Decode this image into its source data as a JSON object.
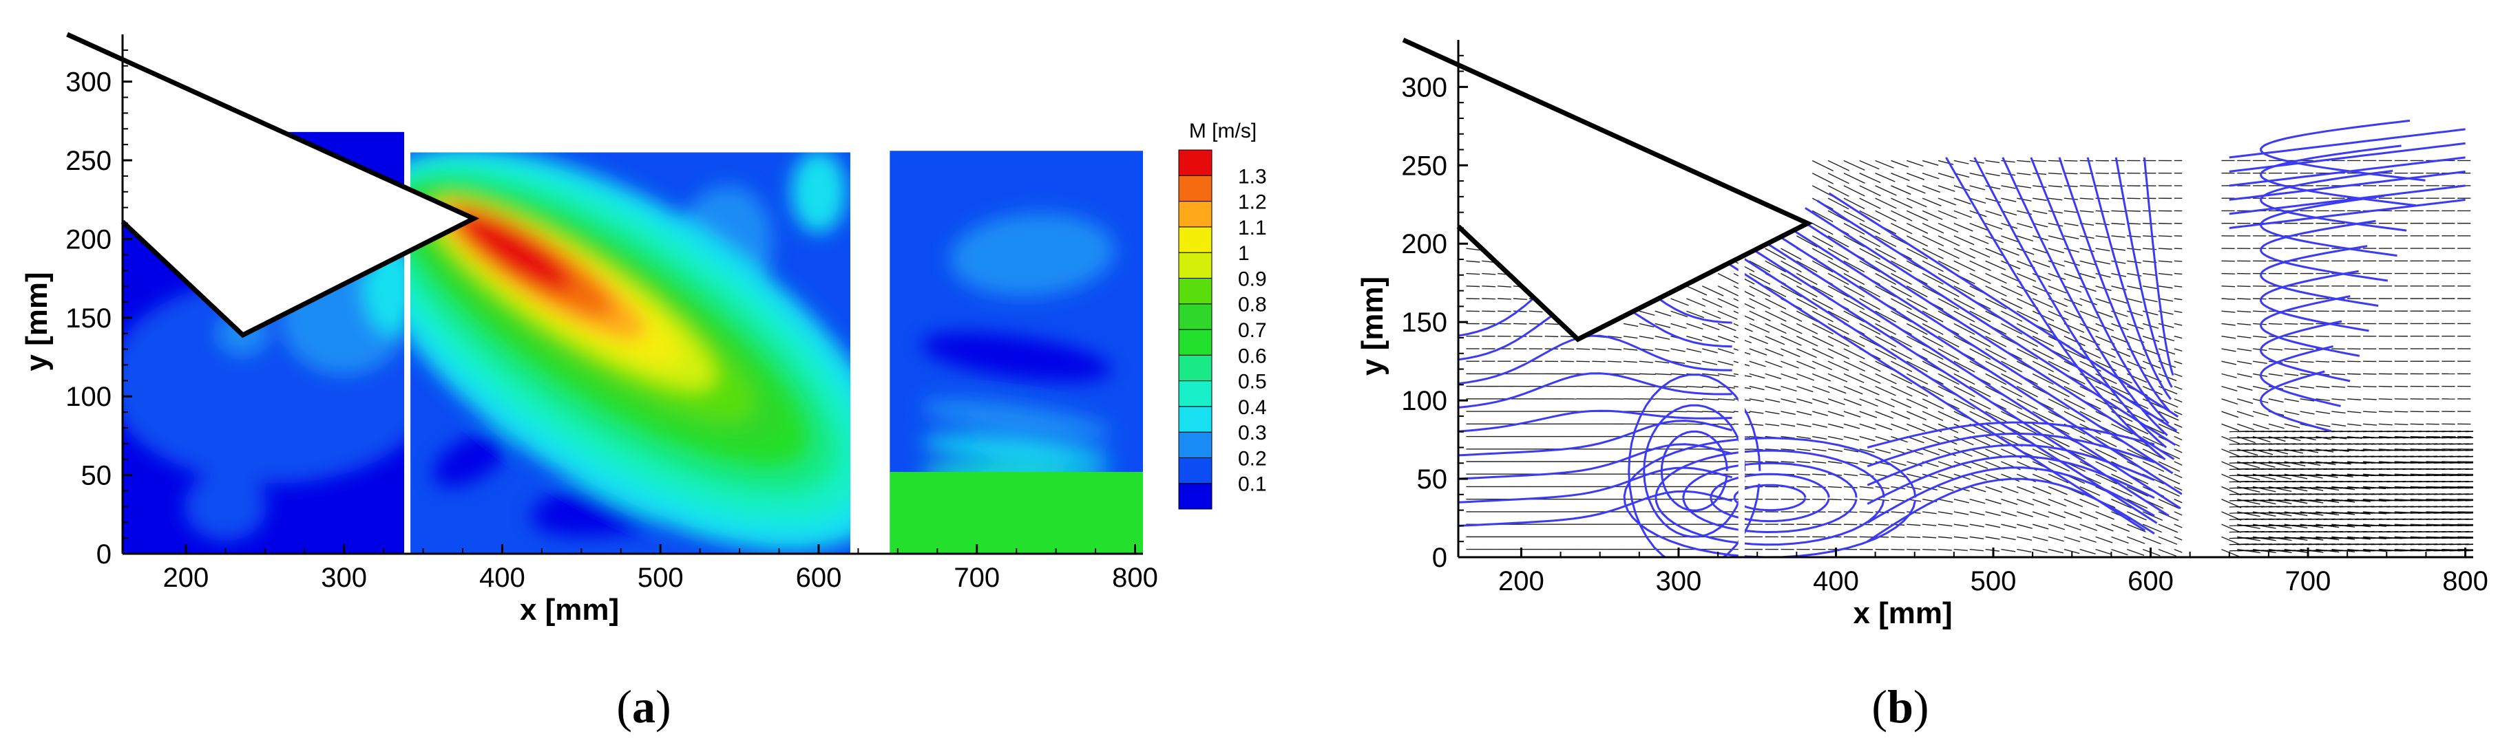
{
  "chart_data": [
    {
      "type": "heatmap",
      "panel_label": "(a)",
      "panel_label_letter": "a",
      "description_variable": "M",
      "xlabel": "x [mm]",
      "ylabel": "y [mm]",
      "xlim": [
        160,
        805
      ],
      "ylim": [
        0,
        330
      ],
      "x_ticks": [
        200,
        300,
        400,
        500,
        600,
        700,
        800
      ],
      "y_ticks": [
        0,
        50,
        100,
        150,
        200,
        250,
        300
      ],
      "colorbar": {
        "title": "M [m/s]",
        "levels": [
          0.1,
          0.2,
          0.3,
          0.4,
          0.5,
          0.6,
          0.7,
          0.8,
          0.9,
          1,
          1.1,
          1.2,
          1.3
        ],
        "colors": [
          "#0000e6",
          "#0b4df2",
          "#1a8cf5",
          "#19e0f0",
          "#17f0c8",
          "#19ea87",
          "#22e02c",
          "#2fd72b",
          "#59de0c",
          "#d4f00a",
          "#f5ee07",
          "#ffa81a",
          "#f46b10",
          "#e60a0a"
        ]
      },
      "windows": [
        {
          "x": [
            160,
            338
          ],
          "y": [
            0,
            268
          ]
        },
        {
          "x": [
            342,
            620
          ],
          "y": [
            0,
            255
          ]
        },
        {
          "x": [
            645,
            805
          ],
          "y": [
            0,
            256
          ]
        }
      ],
      "obstacle_outline": [
        [
          125,
          330
        ],
        [
          382,
          213
        ],
        [
          236,
          139
        ],
        [
          160,
          211
        ]
      ],
      "jet_start": [
        370,
        200
      ],
      "jet_end": [
        590,
        60
      ]
    },
    {
      "type": "scatter",
      "panel_label": "(b)",
      "panel_label_letter": "b",
      "description_variable": "streamlines and velocity vectors",
      "xlabel": "x [mm]",
      "ylabel": "y [mm]",
      "xlim": [
        160,
        805
      ],
      "ylim": [
        0,
        330
      ],
      "x_ticks": [
        200,
        300,
        400,
        500,
        600,
        700,
        800
      ],
      "y_ticks": [
        0,
        50,
        100,
        150,
        200,
        250,
        300
      ],
      "streamline_color": "#3b3bf5",
      "vector_color": "#222222",
      "windows": [
        {
          "x": [
            160,
            338
          ],
          "y": [
            0,
            268
          ]
        },
        {
          "x": [
            342,
            620
          ],
          "y": [
            0,
            255
          ]
        },
        {
          "x": [
            645,
            805
          ],
          "y": [
            0,
            256
          ]
        }
      ],
      "obstacle_outline": [
        [
          125,
          330
        ],
        [
          382,
          213
        ],
        [
          236,
          139
        ],
        [
          160,
          211
        ]
      ],
      "vortex_center": [
        350,
        38
      ]
    }
  ]
}
